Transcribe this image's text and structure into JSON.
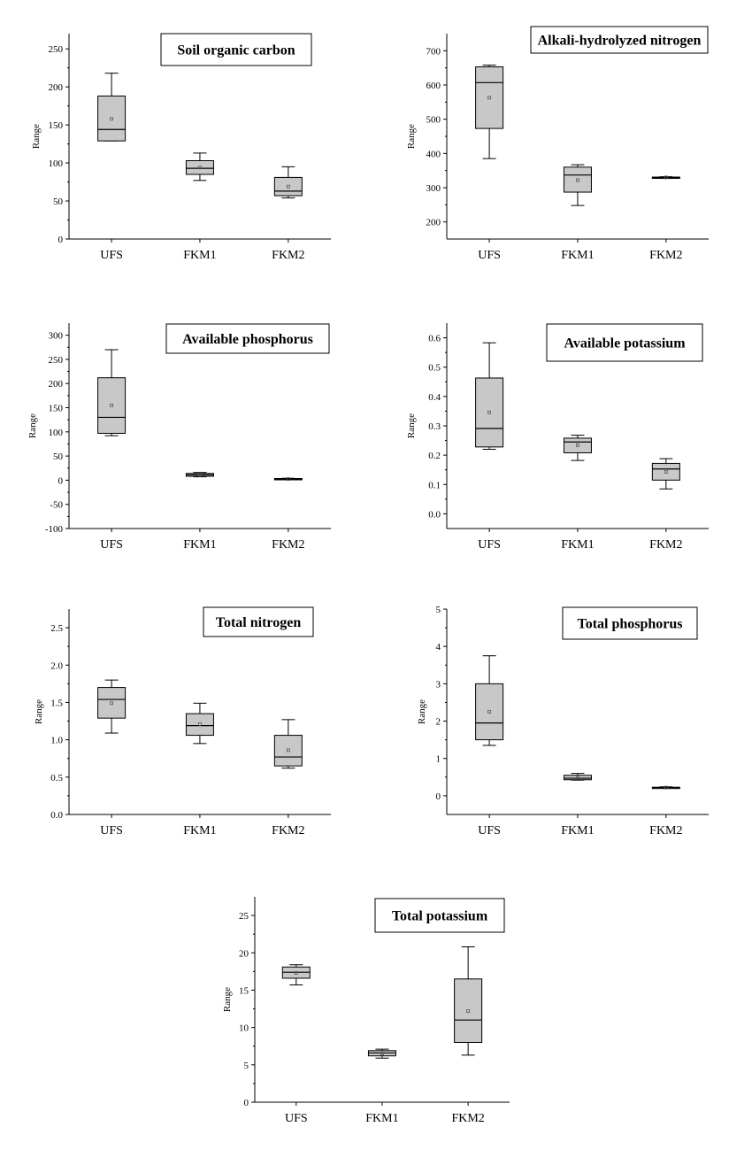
{
  "chart_data": [
    {
      "type": "box",
      "title": "Soil organic carbon",
      "ylabel": "Range",
      "ylim": [
        0,
        270
      ],
      "yticks": [
        0,
        50,
        100,
        150,
        200,
        250
      ],
      "categories": [
        "UFS",
        "FKM1",
        "FKM2"
      ],
      "boxes": [
        {
          "min": 129,
          "q1": 129,
          "median": 144,
          "q3": 188,
          "max": 218,
          "mean": 158
        },
        {
          "min": 77,
          "q1": 85,
          "median": 93,
          "q3": 103,
          "max": 113,
          "mean": 94
        },
        {
          "min": 54,
          "q1": 57,
          "median": 63,
          "q3": 81,
          "max": 95,
          "mean": 69
        }
      ]
    },
    {
      "type": "box",
      "title": "Alkali-hydrolyzed nitrogen",
      "ylabel": "Range",
      "ylim": [
        150,
        750
      ],
      "yticks": [
        200,
        300,
        400,
        500,
        600,
        700
      ],
      "categories": [
        "UFS",
        "FKM1",
        "FKM2"
      ],
      "boxes": [
        {
          "min": 385,
          "q1": 473,
          "median": 607,
          "q3": 653,
          "max": 658,
          "mean": 563
        },
        {
          "min": 248,
          "q1": 287,
          "median": 337,
          "q3": 360,
          "max": 367,
          "mean": 322
        },
        {
          "min": 327,
          "q1": 328,
          "median": 330,
          "q3": 331,
          "max": 332,
          "mean": 330
        }
      ]
    },
    {
      "type": "box",
      "title": "Available phosphorus",
      "ylabel": "Range",
      "ylim": [
        -100,
        325
      ],
      "yticks": [
        -100,
        -50,
        0,
        50,
        100,
        150,
        200,
        250,
        300
      ],
      "categories": [
        "UFS",
        "FKM1",
        "FKM2"
      ],
      "boxes": [
        {
          "min": 92,
          "q1": 97,
          "median": 130,
          "q3": 212,
          "max": 270,
          "mean": 155
        },
        {
          "min": 7,
          "q1": 8,
          "median": 11,
          "q3": 14,
          "max": 16,
          "mean": 11
        },
        {
          "min": 1,
          "q1": 1.5,
          "median": 2.5,
          "q3": 3.5,
          "max": 4,
          "mean": 2.5
        }
      ]
    },
    {
      "type": "box",
      "title": "Available potassium",
      "ylabel": "Range",
      "ylim": [
        -0.05,
        0.65
      ],
      "yticks": [
        0.0,
        0.1,
        0.2,
        0.3,
        0.4,
        0.5,
        0.6
      ],
      "categories": [
        "UFS",
        "FKM1",
        "FKM2"
      ],
      "boxes": [
        {
          "min": 0.22,
          "q1": 0.228,
          "median": 0.291,
          "q3": 0.463,
          "max": 0.583,
          "mean": 0.346
        },
        {
          "min": 0.182,
          "q1": 0.208,
          "median": 0.245,
          "q3": 0.258,
          "max": 0.268,
          "mean": 0.234
        },
        {
          "min": 0.085,
          "q1": 0.115,
          "median": 0.153,
          "q3": 0.172,
          "max": 0.188,
          "mean": 0.143
        }
      ]
    },
    {
      "type": "box",
      "title": "Total nitrogen",
      "ylabel": "Range",
      "ylim": [
        0,
        2.75
      ],
      "yticks": [
        0.0,
        0.5,
        1.0,
        1.5,
        2.0,
        2.5
      ],
      "categories": [
        "UFS",
        "FKM1",
        "FKM2"
      ],
      "boxes": [
        {
          "min": 1.09,
          "q1": 1.29,
          "median": 1.54,
          "q3": 1.7,
          "max": 1.8,
          "mean": 1.49
        },
        {
          "min": 0.95,
          "q1": 1.06,
          "median": 1.19,
          "q3": 1.35,
          "max": 1.49,
          "mean": 1.21
        },
        {
          "min": 0.62,
          "q1": 0.65,
          "median": 0.77,
          "q3": 1.06,
          "max": 1.27,
          "mean": 0.86
        }
      ]
    },
    {
      "type": "box",
      "title": "Total phosphorus",
      "ylabel": "Range",
      "ylim": [
        -0.5,
        5
      ],
      "yticks": [
        0,
        1,
        2,
        3,
        4,
        5
      ],
      "categories": [
        "UFS",
        "FKM1",
        "FKM2"
      ],
      "boxes": [
        {
          "min": 1.35,
          "q1": 1.5,
          "median": 1.95,
          "q3": 3.0,
          "max": 3.75,
          "mean": 2.25
        },
        {
          "min": 0.42,
          "q1": 0.43,
          "median": 0.47,
          "q3": 0.55,
          "max": 0.6,
          "mean": 0.48
        },
        {
          "min": 0.2,
          "q1": 0.21,
          "median": 0.22,
          "q3": 0.23,
          "max": 0.24,
          "mean": 0.22
        }
      ]
    },
    {
      "type": "box",
      "title": "Total potassium",
      "ylabel": "Range",
      "ylim": [
        0,
        27.5
      ],
      "yticks": [
        0,
        5,
        10,
        15,
        20,
        25
      ],
      "categories": [
        "UFS",
        "FKM1",
        "FKM2"
      ],
      "boxes": [
        {
          "min": 15.7,
          "q1": 16.6,
          "median": 17.4,
          "q3": 18.1,
          "max": 18.4,
          "mean": 17.3
        },
        {
          "min": 5.9,
          "q1": 6.2,
          "median": 6.6,
          "q3": 6.9,
          "max": 7.1,
          "mean": 6.5
        },
        {
          "min": 6.3,
          "q1": 8.0,
          "median": 11.0,
          "q3": 16.5,
          "max": 20.8,
          "mean": 12.2
        }
      ]
    }
  ]
}
